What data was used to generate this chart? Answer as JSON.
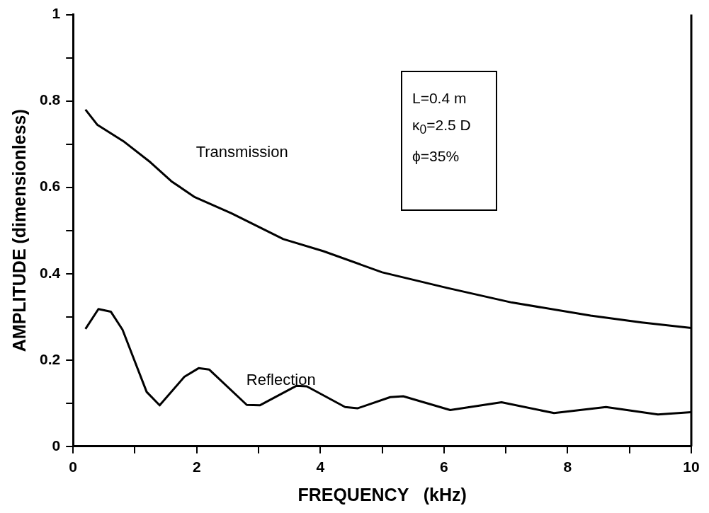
{
  "chart_data": {
    "type": "line",
    "xlabel": "FREQUENCY   (kHz)",
    "ylabel": "AMPLITUDE (dimensionless)",
    "xlim": [
      0,
      10
    ],
    "xticks": [
      0,
      {
        "value": 1,
        "label": null
      },
      2,
      {
        "value": 3,
        "label": null
      },
      4,
      {
        "value": 5,
        "label": null
      },
      6,
      {
        "value": 7,
        "label": null
      },
      8,
      {
        "value": 9,
        "label": null
      },
      10
    ],
    "ylim": [
      0,
      1
    ],
    "yticks": [
      0,
      {
        "value": 0.1,
        "label": null
      },
      0.2,
      {
        "value": 0.3,
        "label": null
      },
      0.4,
      {
        "value": 0.5,
        "label": null
      },
      0.6,
      {
        "value": 0.7,
        "label": null
      },
      0.8,
      {
        "value": 0.9,
        "label": null
      },
      1
    ],
    "grid": false,
    "legend": false,
    "marker": "none",
    "line_style": "solid",
    "series": [
      {
        "name": "Transmission",
        "color": "#000000",
        "x": [
          0.2,
          0.39,
          0.83,
          1.25,
          1.59,
          1.97,
          2.56,
          3.4,
          4.05,
          5.0,
          6.05,
          7.1,
          8.37,
          9.2,
          10
        ],
        "values": [
          0.78,
          0.745,
          0.705,
          0.658,
          0.614,
          0.577,
          0.54,
          0.48,
          0.452,
          0.403,
          0.367,
          0.333,
          0.303,
          0.287,
          0.274
        ]
      },
      {
        "name": "Reflection",
        "color": "#000000",
        "x": [
          0.2,
          0.41,
          0.61,
          0.8,
          1.19,
          1.4,
          1.8,
          2.03,
          2.2,
          2.81,
          3.02,
          3.61,
          3.78,
          4.4,
          4.6,
          5.13,
          5.34,
          6.1,
          6.93,
          7.78,
          8.62,
          9.46,
          10
        ],
        "values": [
          0.272,
          0.318,
          0.312,
          0.27,
          0.126,
          0.095,
          0.161,
          0.181,
          0.178,
          0.096,
          0.095,
          0.14,
          0.139,
          0.091,
          0.088,
          0.114,
          0.116,
          0.084,
          0.102,
          0.077,
          0.091,
          0.074,
          0.079
        ]
      }
    ],
    "annotations": [
      "L=0.4 m",
      "κ$_{0}$=2.5 D",
      "ϕ=35%"
    ]
  }
}
